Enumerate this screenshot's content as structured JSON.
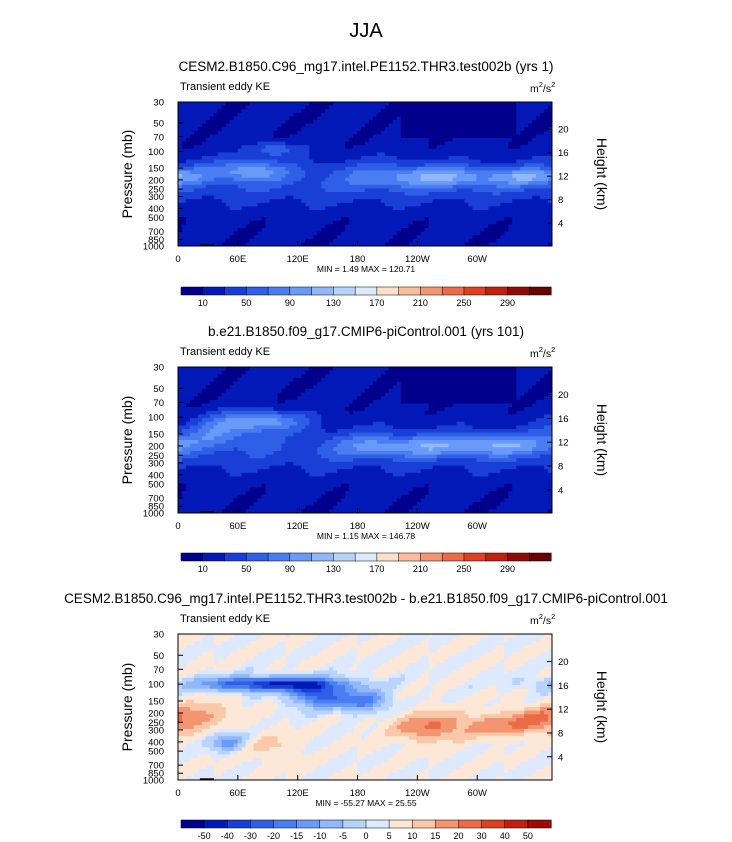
{
  "title": "JJA",
  "chart_data": [
    {
      "type": "heatmap",
      "title": "CESM2.B1850.C96_mg17.intel.PE1152.THR3.test002b (yrs 1)",
      "subtitle_left": "Transient eddy KE",
      "units": "m²/s²",
      "units_base": "m",
      "units_sup1": "2",
      "units_mid": "/s",
      "units_sup2": "2",
      "ylabel": "Pressure (mb)",
      "ylabel_right": "Height (km)",
      "x_ticks": [
        "0",
        "60E",
        "120E",
        "180",
        "120W",
        "60W"
      ],
      "x_tick_lon": [
        0,
        60,
        120,
        180,
        240,
        300
      ],
      "x_range": [
        0,
        375
      ],
      "y_ticks": [
        "30",
        "50",
        "70",
        "100",
        "150",
        "200",
        "250",
        "300",
        "400",
        "500",
        "700",
        "850",
        "1000"
      ],
      "y_tick_p": [
        30,
        50,
        70,
        100,
        150,
        200,
        250,
        300,
        400,
        500,
        700,
        850,
        1000
      ],
      "y_range_mb": [
        30,
        1000
      ],
      "height_ticks": [
        "20",
        "16",
        "12",
        "8",
        "4"
      ],
      "height_tick_km": [
        20,
        16,
        12,
        8,
        4
      ],
      "min_max_text": "MIN =   1.49  MAX = 120.71",
      "colorbar_labels": [
        "10",
        "50",
        "90",
        "130",
        "170",
        "210",
        "250",
        "290"
      ],
      "colors": [
        "#00008c",
        "#0319b8",
        "#1a3fd6",
        "#2f5fe6",
        "#4a7df2",
        "#6a9af7",
        "#90b8fb",
        "#b8d4fd",
        "#dce9fe",
        "#fde0cc",
        "#f9bc9c",
        "#f49572",
        "#ec6b47",
        "#dd4122",
        "#c2200e",
        "#8e0a06",
        "#6a0000"
      ],
      "blobs": [
        {
          "lon": 70,
          "p": 160,
          "amp": 3.4,
          "wl": 30,
          "wp": 0.18
        },
        {
          "lon": 95,
          "p": 95,
          "amp": 2.5,
          "wl": 18,
          "wp": 0.12
        },
        {
          "lon": 270,
          "p": 185,
          "amp": 3.3,
          "wl": 45,
          "wp": 0.18
        },
        {
          "lon": 355,
          "p": 185,
          "amp": 2.8,
          "wl": 22,
          "wp": 0.15
        },
        {
          "lon": 200,
          "p": 175,
          "amp": 1.2,
          "wl": 35,
          "wp": 0.25
        }
      ]
    },
    {
      "type": "heatmap",
      "title": "b.e21.B1850.f09_g17.CMIP6-piControl.001 (yrs 101)",
      "subtitle_left": "Transient eddy KE",
      "units": "m²/s²",
      "units_base": "m",
      "units_sup1": "2",
      "units_mid": "/s",
      "units_sup2": "2",
      "ylabel": "Pressure (mb)",
      "ylabel_right": "Height (km)",
      "x_ticks": [
        "0",
        "60E",
        "120E",
        "180",
        "120W",
        "60W"
      ],
      "x_tick_lon": [
        0,
        60,
        120,
        180,
        240,
        300
      ],
      "x_range": [
        0,
        375
      ],
      "y_ticks": [
        "30",
        "50",
        "70",
        "100",
        "150",
        "200",
        "250",
        "300",
        "400",
        "500",
        "700",
        "850",
        "1000"
      ],
      "y_tick_p": [
        30,
        50,
        70,
        100,
        150,
        200,
        250,
        300,
        400,
        500,
        700,
        850,
        1000
      ],
      "y_range_mb": [
        30,
        1000
      ],
      "height_ticks": [
        "20",
        "16",
        "12",
        "8",
        "4"
      ],
      "height_tick_km": [
        20,
        16,
        12,
        8,
        4
      ],
      "min_max_text": "MIN =   1.15  MAX = 146.78",
      "colorbar_labels": [
        "10",
        "50",
        "90",
        "130",
        "170",
        "210",
        "250",
        "290"
      ],
      "colors": [
        "#00008c",
        "#0319b8",
        "#1a3fd6",
        "#2f5fe6",
        "#4a7df2",
        "#6a9af7",
        "#90b8fb",
        "#b8d4fd",
        "#dce9fe",
        "#fde0cc",
        "#f9bc9c",
        "#f49572",
        "#ec6b47",
        "#dd4122",
        "#c2200e",
        "#8e0a06",
        "#6a0000"
      ],
      "blobs": [
        {
          "lon": 80,
          "p": 110,
          "amp": 4.4,
          "wl": 32,
          "wp": 0.18
        },
        {
          "lon": 40,
          "p": 150,
          "amp": 2.2,
          "wl": 22,
          "wp": 0.2
        },
        {
          "lon": 255,
          "p": 200,
          "amp": 2.8,
          "wl": 45,
          "wp": 0.18
        },
        {
          "lon": 335,
          "p": 195,
          "amp": 2.6,
          "wl": 35,
          "wp": 0.18
        },
        {
          "lon": 190,
          "p": 200,
          "amp": 1.5,
          "wl": 30,
          "wp": 0.2
        }
      ]
    },
    {
      "type": "heatmap",
      "title": "CESM2.B1850.C96_mg17.intel.PE1152.THR3.test002b - b.e21.B1850.f09_g17.CMIP6-piControl.001",
      "subtitle_left": "Transient eddy KE",
      "units": "m²/s²",
      "units_base": "m",
      "units_sup1": "2",
      "units_mid": "/s",
      "units_sup2": "2",
      "ylabel": "Pressure (mb)",
      "ylabel_right": "Height (km)",
      "x_ticks": [
        "0",
        "60E",
        "120E",
        "180",
        "120W",
        "60W"
      ],
      "x_tick_lon": [
        0,
        60,
        120,
        180,
        240,
        300
      ],
      "x_range": [
        0,
        375
      ],
      "y_ticks": [
        "30",
        "50",
        "70",
        "100",
        "150",
        "200",
        "250",
        "300",
        "400",
        "500",
        "700",
        "850",
        "1000"
      ],
      "y_tick_p": [
        30,
        50,
        70,
        100,
        150,
        200,
        250,
        300,
        400,
        500,
        700,
        850,
        1000
      ],
      "y_range_mb": [
        30,
        1000
      ],
      "height_ticks": [
        "20",
        "16",
        "12",
        "8",
        "4"
      ],
      "height_tick_km": [
        20,
        16,
        12,
        8,
        4
      ],
      "min_max_text": "MIN = -55.27  MAX =  25.55",
      "colorbar_labels": [
        "-50",
        "-40",
        "-30",
        "-20",
        "-15",
        "-10",
        "-5",
        "0",
        "5",
        "10",
        "15",
        "20",
        "30",
        "40",
        "50"
      ],
      "colors": [
        "#00008c",
        "#0319b8",
        "#1a3fd6",
        "#2f5fe6",
        "#4a7df2",
        "#6a9af7",
        "#90b8fb",
        "#b8d4fd",
        "#dce9fe",
        "#fde8d8",
        "#f9c8a8",
        "#f49572",
        "#ec6b47",
        "#dd4122",
        "#c2200e",
        "#a00a06"
      ],
      "blobs": [
        {
          "lon": 95,
          "p": 100,
          "amp": -6.5,
          "wl": 50,
          "wp": 0.12
        },
        {
          "lon": 140,
          "p": 130,
          "amp": -5.0,
          "wl": 18,
          "wp": 0.2
        },
        {
          "lon": 185,
          "p": 150,
          "amp": -4.0,
          "wl": 18,
          "wp": 0.18
        },
        {
          "lon": 50,
          "p": 400,
          "amp": -3.0,
          "wl": 12,
          "wp": 0.15
        },
        {
          "lon": 250,
          "p": 280,
          "amp": 3.0,
          "wl": 25,
          "wp": 0.25
        },
        {
          "lon": 320,
          "p": 270,
          "amp": 2.4,
          "wl": 30,
          "wp": 0.2
        },
        {
          "lon": 360,
          "p": 240,
          "amp": 2.2,
          "wl": 20,
          "wp": 0.2
        },
        {
          "lon": 30,
          "p": 200,
          "amp": 1.6,
          "wl": 25,
          "wp": 0.2
        },
        {
          "lon": 95,
          "p": 450,
          "amp": 1.2,
          "wl": 20,
          "wp": 0.25
        }
      ]
    }
  ]
}
